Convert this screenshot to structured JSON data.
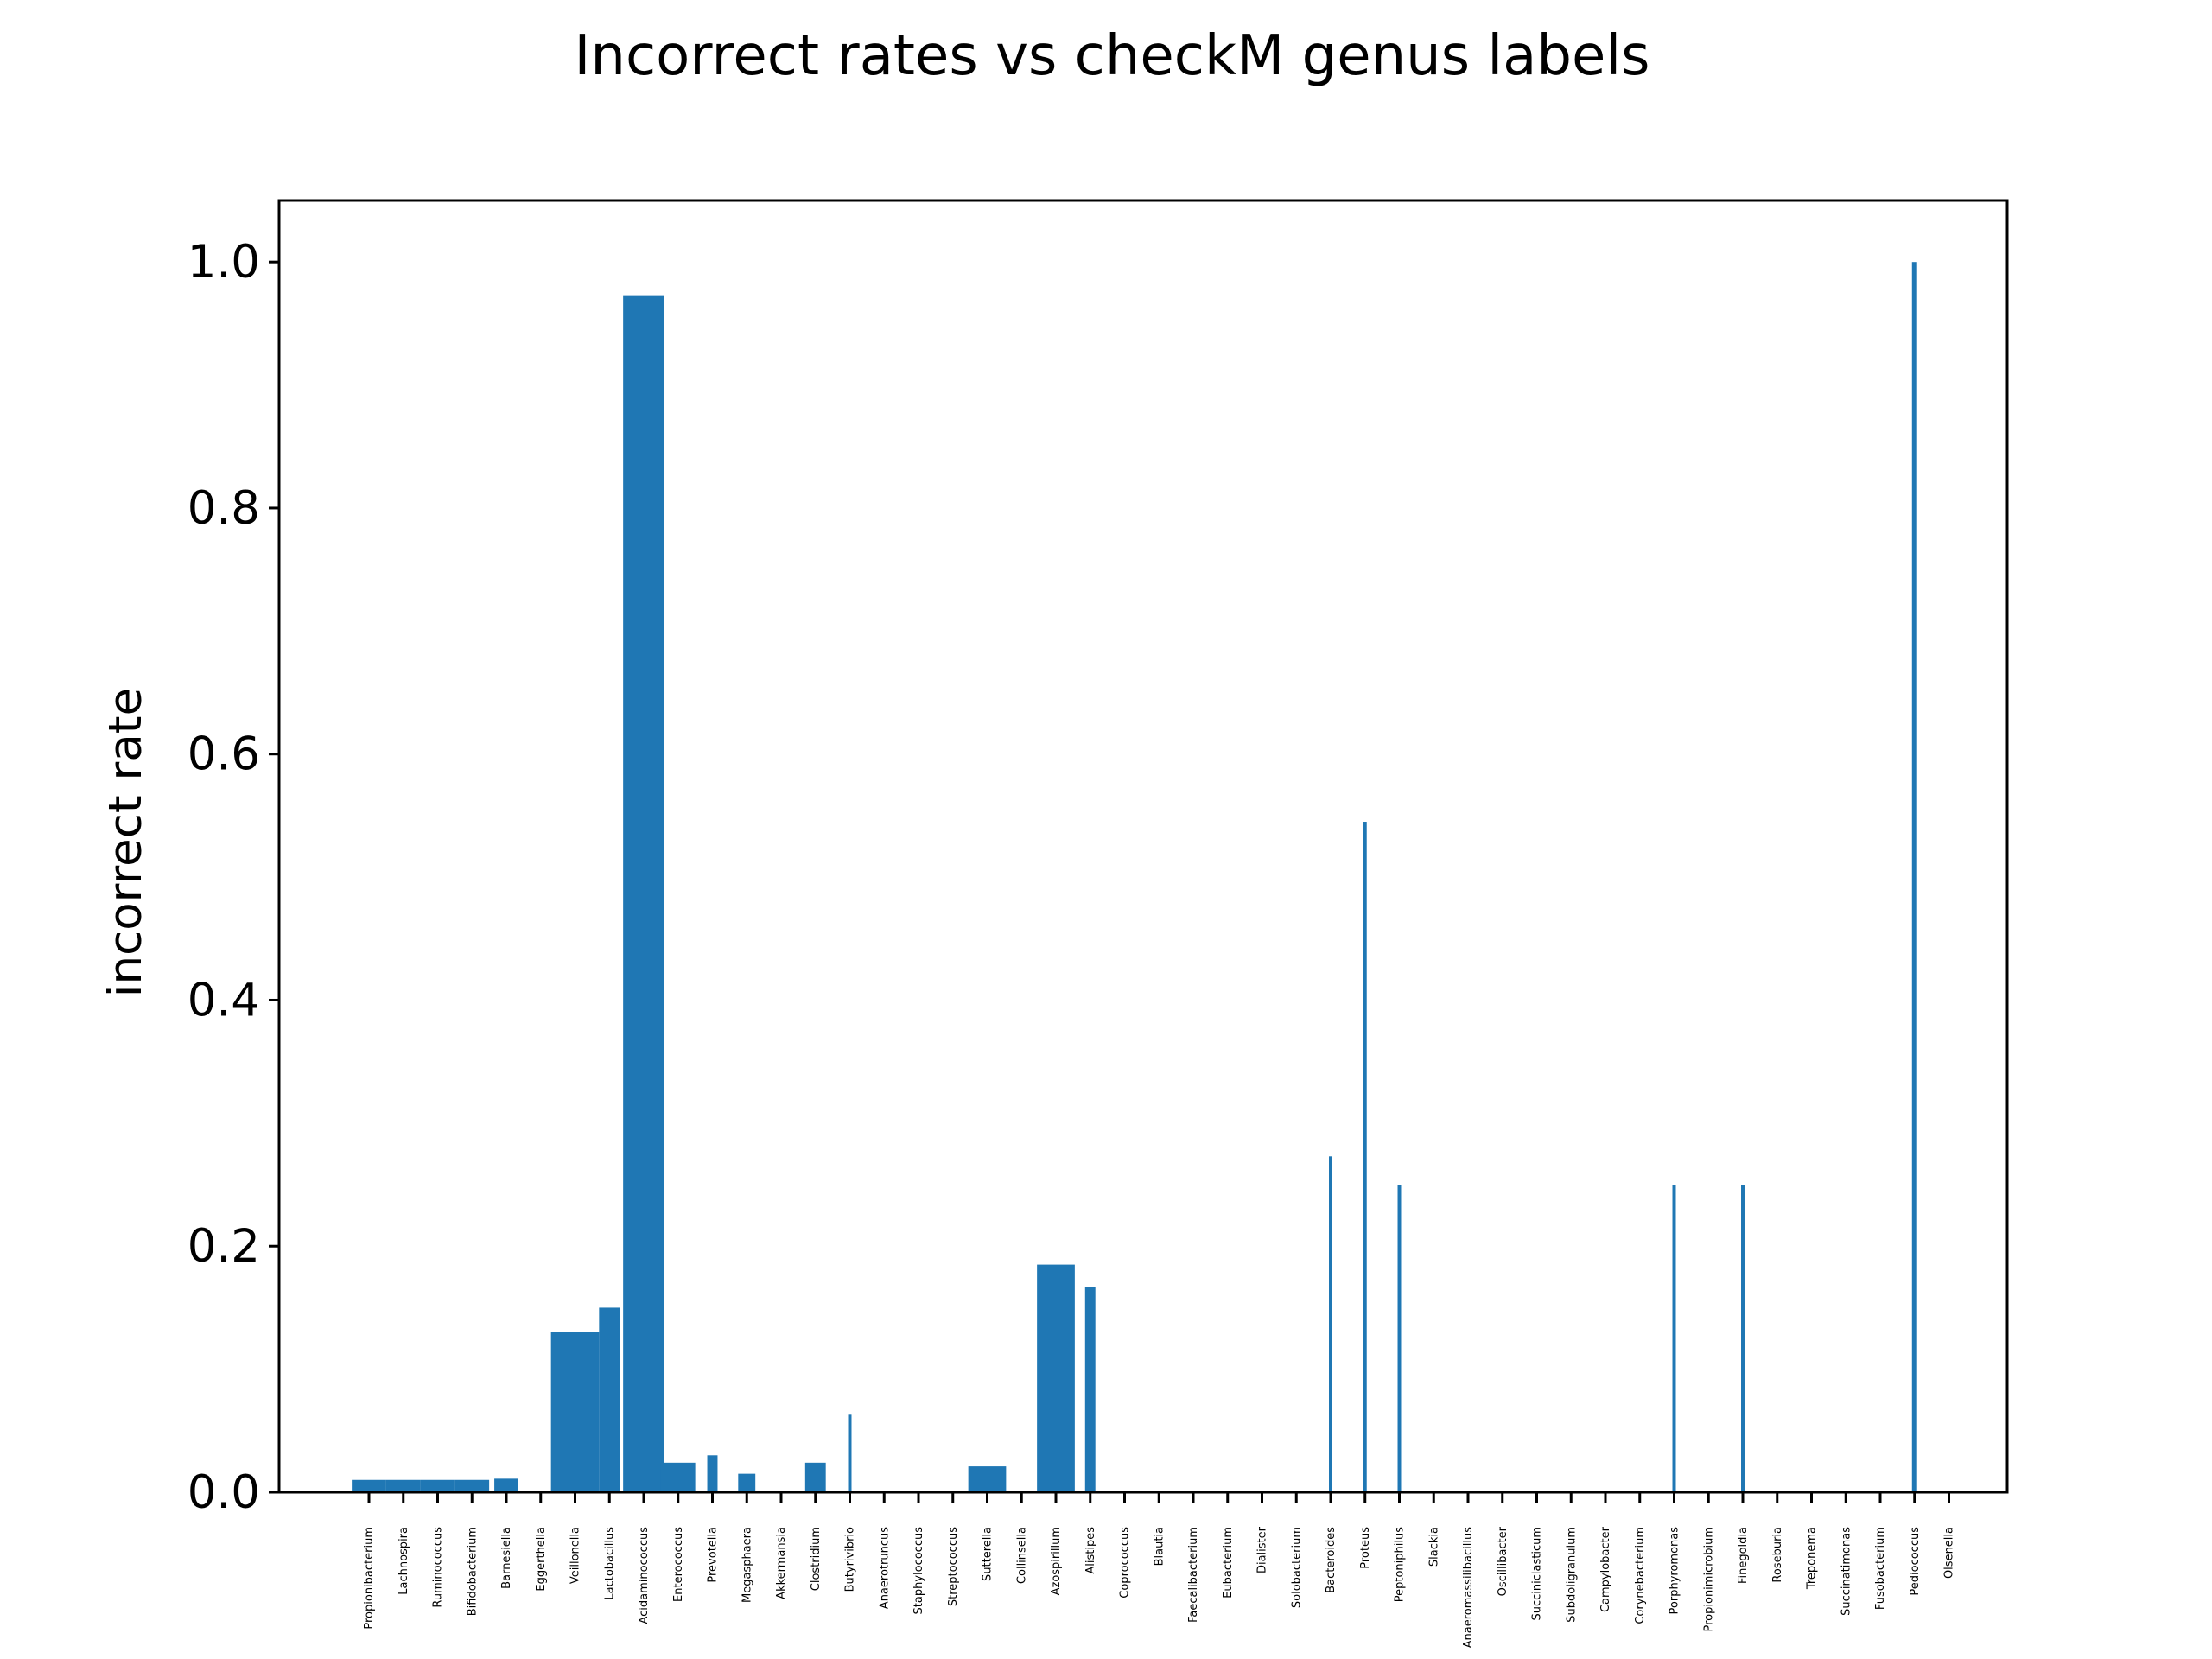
{
  "chart_data": {
    "type": "bar",
    "title": "Incorrect rates vs checkM genus labels",
    "xlabel": "",
    "ylabel": "incorrect rate",
    "ylim": [
      0,
      1.05
    ],
    "yticks": [
      "0.0",
      "0.2",
      "0.4",
      "0.6",
      "0.8",
      "1.0"
    ],
    "grid": false,
    "legend": "none",
    "bar_color": "#1f77b4",
    "categories": [
      "Propionibacterium",
      "Lachnospira",
      "Ruminococcus",
      "Bifidobacterium",
      "Barnesiella",
      "Eggerthella",
      "Veillonella",
      "Lactobacillus",
      "Acidaminococcus",
      "Enterococcus",
      "Prevotella",
      "Megasphaera",
      "Akkermansia",
      "Clostridium",
      "Butyrivibrio",
      "Anaerotruncus",
      "Staphylococcus",
      "Streptococcus",
      "Sutterella",
      "Collinsella",
      "Azospirillum",
      "Alistipes",
      "Coprococcus",
      "Blautia",
      "Faecalibacterium",
      "Eubacterium",
      "Dialister",
      "Solobacterium",
      "Bacteroides",
      "Proteus",
      "Peptoniphilus",
      "Slackia",
      "Anaeromassilibacillus",
      "Oscillibacter",
      "Succiniclasticum",
      "Subdoligranulum",
      "Campylobacter",
      "Corynebacterium",
      "Porphyromonas",
      "Propionimicrobium",
      "Finegoldia",
      "Roseburia",
      "Treponema",
      "Succinatimonas",
      "Fusobacterium",
      "Pediococcus",
      "Olsenella"
    ],
    "values": [
      0.01,
      0.01,
      0.01,
      0.01,
      0.011,
      0,
      0.13,
      0.15,
      0.973,
      0.024,
      0.03,
      0.015,
      0,
      0.024,
      0.063,
      0,
      0,
      0,
      0.021,
      0,
      0.185,
      0.167,
      0,
      0,
      0,
      0,
      0,
      0,
      0.273,
      0.545,
      0.25,
      0,
      0,
      0,
      0,
      0,
      0,
      0,
      0.25,
      0,
      0.25,
      0,
      0,
      0,
      0,
      1.0,
      0
    ],
    "bar_widths": [
      1.0,
      1.0,
      1.0,
      1.0,
      0.7,
      0,
      1.4,
      0.6,
      1.2,
      1.0,
      0.3,
      0.5,
      0,
      0.6,
      0.1,
      0,
      0,
      0,
      1.1,
      0,
      1.1,
      0.3,
      0,
      0,
      0,
      0,
      0,
      0,
      0.1,
      0.1,
      0.1,
      0,
      0,
      0,
      0,
      0,
      0,
      0,
      0.1,
      0,
      0.1,
      0,
      0,
      0,
      0,
      0.15,
      0
    ]
  }
}
